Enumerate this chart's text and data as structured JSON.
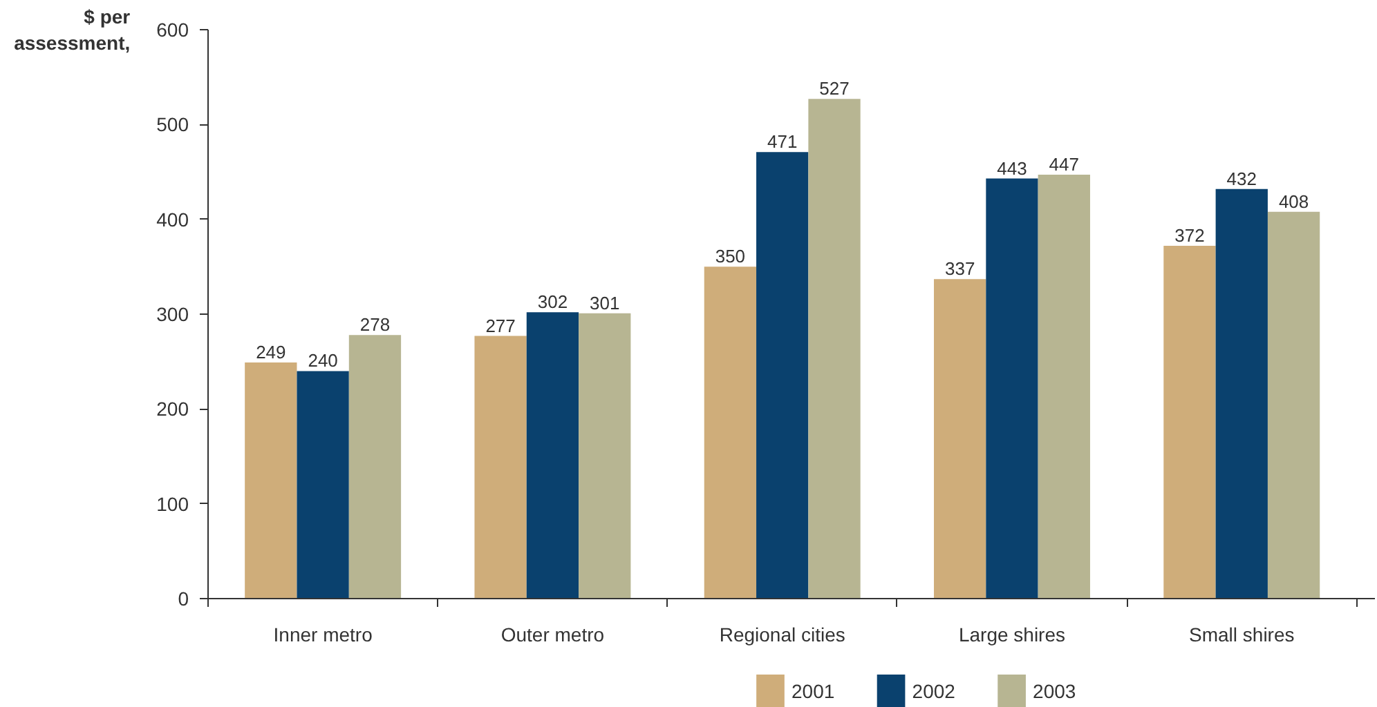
{
  "chart_data": {
    "type": "bar",
    "ylabel": "$ per assessment,",
    "categories": [
      "Inner metro",
      "Outer metro",
      "Regional cities",
      "Large shires",
      "Small shires"
    ],
    "series": [
      {
        "name": "2001",
        "color": "#cfad7a",
        "values": [
          249,
          277,
          350,
          337,
          372
        ]
      },
      {
        "name": "2002",
        "color": "#0a416e",
        "values": [
          240,
          302,
          471,
          443,
          432
        ]
      },
      {
        "name": "2003",
        "color": "#b7b592",
        "values": [
          278,
          301,
          527,
          447,
          408
        ]
      }
    ],
    "ylim": [
      0,
      600
    ],
    "yticks": [
      0,
      100,
      200,
      300,
      400,
      500,
      600
    ],
    "grid": false,
    "legend": "bottom",
    "data_labels": true
  }
}
